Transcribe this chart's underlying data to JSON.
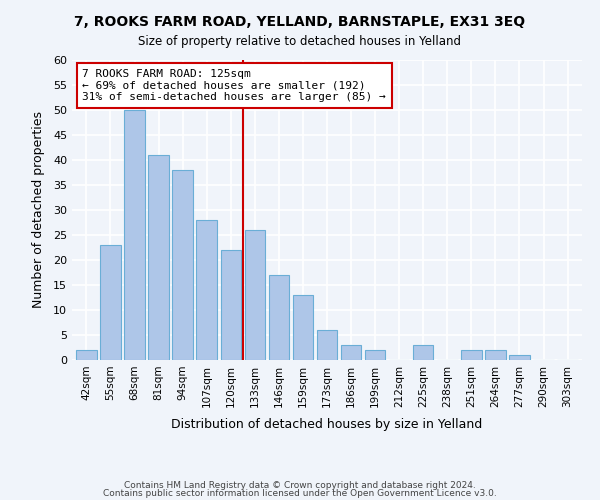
{
  "title": "7, ROOKS FARM ROAD, YELLAND, BARNSTAPLE, EX31 3EQ",
  "subtitle": "Size of property relative to detached houses in Yelland",
  "xlabel": "Distribution of detached houses by size in Yelland",
  "ylabel": "Number of detached properties",
  "bar_labels": [
    "42sqm",
    "55sqm",
    "68sqm",
    "81sqm",
    "94sqm",
    "107sqm",
    "120sqm",
    "133sqm",
    "146sqm",
    "159sqm",
    "173sqm",
    "186sqm",
    "199sqm",
    "212sqm",
    "225sqm",
    "238sqm",
    "251sqm",
    "264sqm",
    "277sqm",
    "290sqm",
    "303sqm"
  ],
  "bar_values": [
    2,
    23,
    50,
    41,
    38,
    28,
    22,
    26,
    17,
    13,
    6,
    3,
    2,
    0,
    3,
    0,
    2,
    2,
    1,
    0,
    0
  ],
  "bar_color": "#aec6e8",
  "bar_edge_color": "#6aaed6",
  "vline_x": 7,
  "vline_color": "#cc0000",
  "ylim": [
    0,
    60
  ],
  "yticks": [
    0,
    5,
    10,
    15,
    20,
    25,
    30,
    35,
    40,
    45,
    50,
    55,
    60
  ],
  "annotation_title": "7 ROOKS FARM ROAD: 125sqm",
  "annotation_line1": "← 69% of detached houses are smaller (192)",
  "annotation_line2": "31% of semi-detached houses are larger (85) →",
  "annotation_box_color": "#ffffff",
  "annotation_box_edge": "#cc0000",
  "footer_line1": "Contains HM Land Registry data © Crown copyright and database right 2024.",
  "footer_line2": "Contains public sector information licensed under the Open Government Licence v3.0.",
  "background_color": "#f0f4fa",
  "grid_color": "#ffffff"
}
